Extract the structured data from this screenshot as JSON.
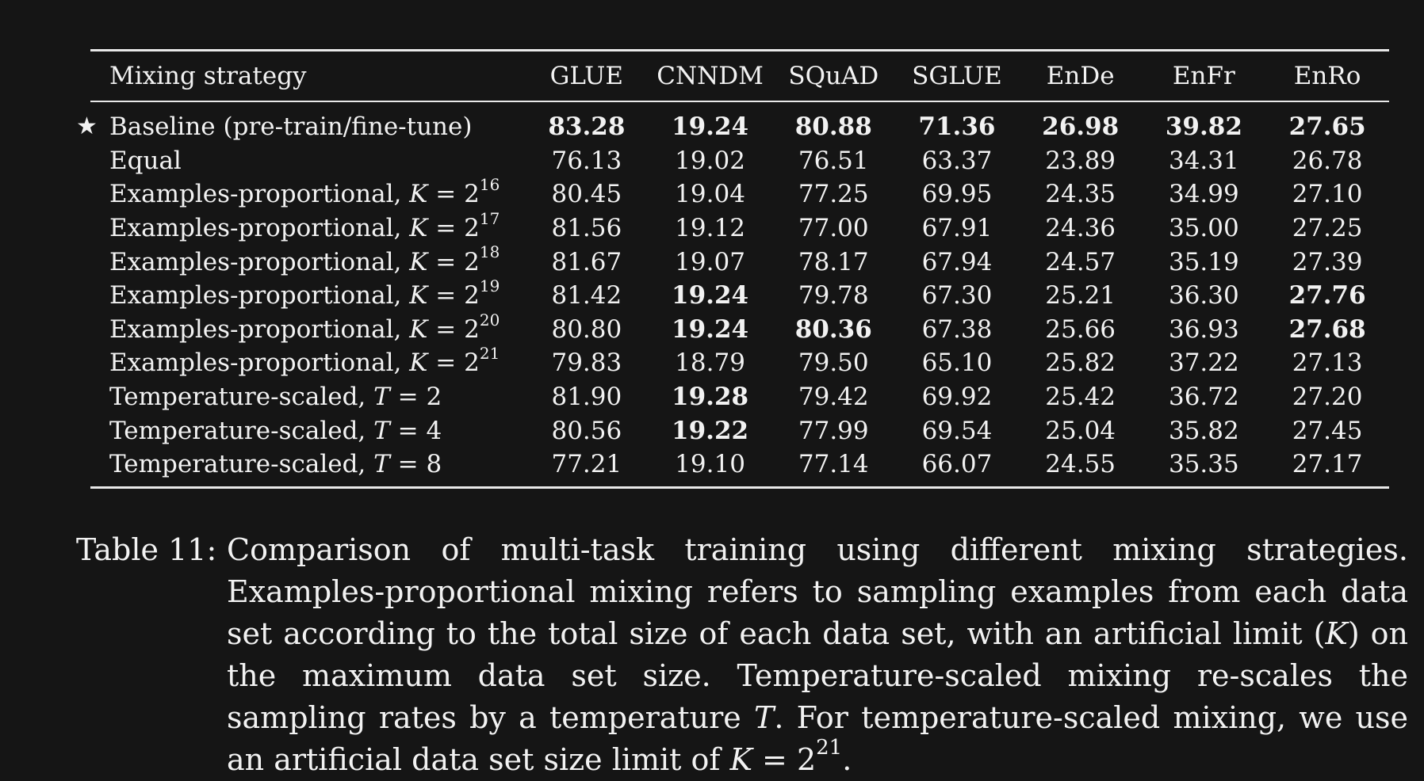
{
  "table": {
    "headers": [
      "Mixing strategy",
      "GLUE",
      "CNNDM",
      "SQuAD",
      "SGLUE",
      "EnDe",
      "EnFr",
      "EnRo"
    ],
    "rows": [
      {
        "marker": "★",
        "label": "Baseline (pre-train/fine-tune)",
        "var": "",
        "op": "",
        "base": "",
        "exp": "",
        "values": [
          "83.28",
          "19.24",
          "80.88",
          "71.36",
          "26.98",
          "39.82",
          "27.65"
        ],
        "bold": [
          true,
          true,
          true,
          true,
          true,
          true,
          true
        ]
      },
      {
        "marker": "",
        "label": "Equal",
        "var": "",
        "op": "",
        "base": "",
        "exp": "",
        "values": [
          "76.13",
          "19.02",
          "76.51",
          "63.37",
          "23.89",
          "34.31",
          "26.78"
        ],
        "bold": [
          false,
          false,
          false,
          false,
          false,
          false,
          false
        ]
      },
      {
        "marker": "",
        "label": "Examples-proportional, ",
        "var": "K",
        "op": " = ",
        "base": "2",
        "exp": "16",
        "values": [
          "80.45",
          "19.04",
          "77.25",
          "69.95",
          "24.35",
          "34.99",
          "27.10"
        ],
        "bold": [
          false,
          false,
          false,
          false,
          false,
          false,
          false
        ]
      },
      {
        "marker": "",
        "label": "Examples-proportional, ",
        "var": "K",
        "op": " = ",
        "base": "2",
        "exp": "17",
        "values": [
          "81.56",
          "19.12",
          "77.00",
          "67.91",
          "24.36",
          "35.00",
          "27.25"
        ],
        "bold": [
          false,
          false,
          false,
          false,
          false,
          false,
          false
        ]
      },
      {
        "marker": "",
        "label": "Examples-proportional, ",
        "var": "K",
        "op": " = ",
        "base": "2",
        "exp": "18",
        "values": [
          "81.67",
          "19.07",
          "78.17",
          "67.94",
          "24.57",
          "35.19",
          "27.39"
        ],
        "bold": [
          false,
          false,
          false,
          false,
          false,
          false,
          false
        ]
      },
      {
        "marker": "",
        "label": "Examples-proportional, ",
        "var": "K",
        "op": " = ",
        "base": "2",
        "exp": "19",
        "values": [
          "81.42",
          "19.24",
          "79.78",
          "67.30",
          "25.21",
          "36.30",
          "27.76"
        ],
        "bold": [
          false,
          true,
          false,
          false,
          false,
          false,
          true
        ]
      },
      {
        "marker": "",
        "label": "Examples-proportional, ",
        "var": "K",
        "op": " = ",
        "base": "2",
        "exp": "20",
        "values": [
          "80.80",
          "19.24",
          "80.36",
          "67.38",
          "25.66",
          "36.93",
          "27.68"
        ],
        "bold": [
          false,
          true,
          true,
          false,
          false,
          false,
          true
        ]
      },
      {
        "marker": "",
        "label": "Examples-proportional, ",
        "var": "K",
        "op": " = ",
        "base": "2",
        "exp": "21",
        "values": [
          "79.83",
          "18.79",
          "79.50",
          "65.10",
          "25.82",
          "37.22",
          "27.13"
        ],
        "bold": [
          false,
          false,
          false,
          false,
          false,
          false,
          false
        ]
      },
      {
        "marker": "",
        "label": "Temperature-scaled, ",
        "var": "T",
        "op": " = ",
        "base": "2",
        "exp": "",
        "values": [
          "81.90",
          "19.28",
          "79.42",
          "69.92",
          "25.42",
          "36.72",
          "27.20"
        ],
        "bold": [
          false,
          true,
          false,
          false,
          false,
          false,
          false
        ]
      },
      {
        "marker": "",
        "label": "Temperature-scaled, ",
        "var": "T",
        "op": " = ",
        "base": "4",
        "exp": "",
        "values": [
          "80.56",
          "19.22",
          "77.99",
          "69.54",
          "25.04",
          "35.82",
          "27.45"
        ],
        "bold": [
          false,
          true,
          false,
          false,
          false,
          false,
          false
        ]
      },
      {
        "marker": "",
        "label": "Temperature-scaled, ",
        "var": "T",
        "op": " = ",
        "base": "8",
        "exp": "",
        "values": [
          "77.21",
          "19.10",
          "77.14",
          "66.07",
          "24.55",
          "35.35",
          "27.17"
        ],
        "bold": [
          false,
          false,
          false,
          false,
          false,
          false,
          false
        ]
      }
    ]
  },
  "caption": {
    "label": "Table 11:",
    "text_1": "Comparison of multi-task training using different mixing strategies. Examples-proportional mixing refers to sampling examples from each data set according to the total size of each data set, with an artificial limit (",
    "var_k1": "K",
    "text_2": ") on the maximum data set size. Temperature-scaled mixing re-scales the sampling rates by a temperature ",
    "var_t": "T",
    "text_3": ". For temperature-scaled mixing, we use an artificial data set size limit of ",
    "var_k2": "K",
    "text_4": " = 2",
    "exp": "21",
    "text_5": "."
  }
}
